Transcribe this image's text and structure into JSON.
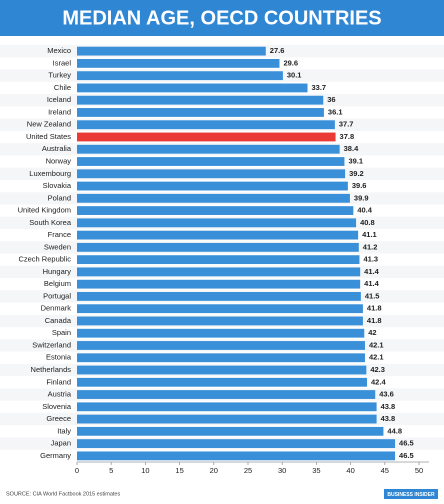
{
  "chart_data": {
    "type": "hbar",
    "title": "MEDIAN AGE, OECD COUNTRIES",
    "categories": [
      "Mexico",
      "Israel",
      "Turkey",
      "Chile",
      "Iceland",
      "Ireland",
      "New Zealand",
      "United States",
      "Australia",
      "Norway",
      "Luxembourg",
      "Slovakia",
      "Poland",
      "United Kingdom",
      "South Korea",
      "France",
      "Sweden",
      "Czech Republic",
      "Hungary",
      "Belgium",
      "Portugal",
      "Denmark",
      "Canada",
      "Spain",
      "Switzerland",
      "Estonia",
      "Netherlands",
      "Finland",
      "Austria",
      "Slovenia",
      "Greece",
      "Italy",
      "Japan",
      "Germany"
    ],
    "values": [
      27.6,
      29.6,
      30.1,
      33.7,
      36,
      36.1,
      37.7,
      37.8,
      38.4,
      39.1,
      39.2,
      39.6,
      39.9,
      40.4,
      40.8,
      41.1,
      41.2,
      41.3,
      41.4,
      41.4,
      41.5,
      41.8,
      41.8,
      42,
      42.1,
      42.1,
      42.3,
      42.4,
      43.6,
      43.8,
      43.8,
      44.8,
      46.5,
      46.5
    ],
    "colors": [
      "#3a8fd9",
      "#3a8fd9",
      "#3a8fd9",
      "#3a8fd9",
      "#3a8fd9",
      "#3a8fd9",
      "#3a8fd9",
      "#ea3a36",
      "#3a8fd9",
      "#3a8fd9",
      "#3a8fd9",
      "#3a8fd9",
      "#3a8fd9",
      "#3a8fd9",
      "#3a8fd9",
      "#3a8fd9",
      "#3a8fd9",
      "#3a8fd9",
      "#3a8fd9",
      "#3a8fd9",
      "#3a8fd9",
      "#3a8fd9",
      "#3a8fd9",
      "#3a8fd9",
      "#3a8fd9",
      "#3a8fd9",
      "#3a8fd9",
      "#3a8fd9",
      "#3a8fd9",
      "#3a8fd9",
      "#3a8fd9",
      "#3a8fd9",
      "#3a8fd9",
      "#3a8fd9"
    ],
    "xlim": [
      0,
      50
    ],
    "xticks": [
      0,
      5,
      10,
      15,
      20,
      25,
      30,
      35,
      40,
      45,
      50
    ],
    "source": "SOURCE: CIA World Factbook 2015 estimates",
    "brand": "BUSINESS INSIDER"
  }
}
